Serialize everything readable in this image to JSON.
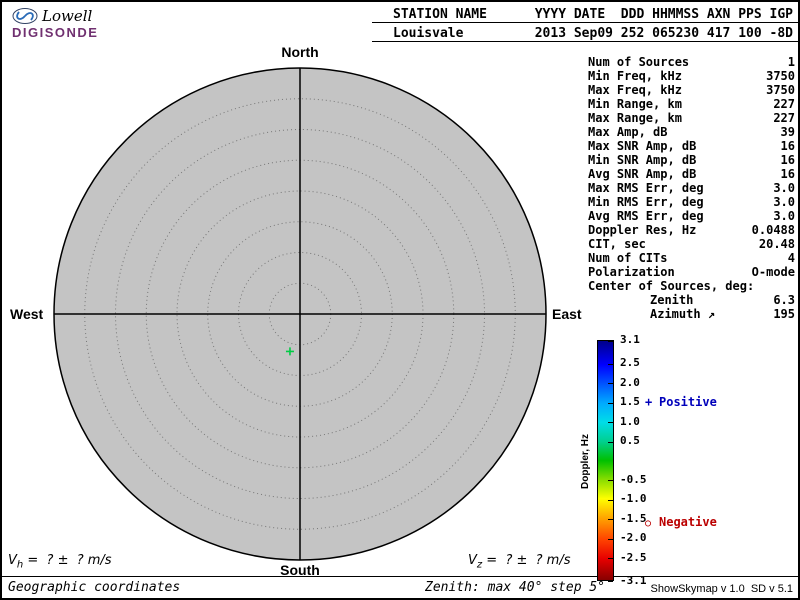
{
  "logo": {
    "brand": "Lowell",
    "product": "DIGISONDE"
  },
  "header": {
    "station_label": "STATION NAME",
    "station_name": "Louisvale",
    "fields_label": "YYYY DATE  DDD HHMMSS AXN PPS IGP",
    "fields_value": "2013 Sep09 252 065230 417 100 -8D"
  },
  "compass": {
    "north": "North",
    "south": "South",
    "east": "East",
    "west": "West"
  },
  "params": [
    {
      "label": "Num of Sources",
      "value": "1"
    },
    {
      "label": "Min Freq, kHz",
      "value": "3750"
    },
    {
      "label": "Max Freq, kHz",
      "value": "3750"
    },
    {
      "label": "Min Range, km",
      "value": "227"
    },
    {
      "label": "Max Range, km",
      "value": "227"
    },
    {
      "label": "Max Amp, dB",
      "value": "39"
    },
    {
      "label": "Max SNR Amp, dB",
      "value": "16"
    },
    {
      "label": "Min SNR Amp, dB",
      "value": "16"
    },
    {
      "label": "Avg SNR Amp, dB",
      "value": "16"
    },
    {
      "label": "Max RMS Err, deg",
      "value": "3.0"
    },
    {
      "label": "Min RMS Err, deg",
      "value": "3.0"
    },
    {
      "label": "Avg RMS Err, deg",
      "value": "3.0"
    },
    {
      "label": "Doppler Res, Hz",
      "value": "0.0488"
    },
    {
      "label": "CIT, sec",
      "value": "20.48"
    },
    {
      "label": "Num of CITs",
      "value": "4"
    },
    {
      "label": "Polarization",
      "value": "O-mode"
    },
    {
      "label": "Center of Sources, deg:",
      "value": ""
    },
    {
      "label": "Zenith",
      "value": "6.3",
      "indent": true
    },
    {
      "label": "Azimuth ↗",
      "value": "195",
      "indent": true
    }
  ],
  "colorbar": {
    "axis_label": "Doppler, Hz",
    "min": -3.1,
    "max": 3.1,
    "ticks": [
      {
        "label": "3.1",
        "value": 3.1
      },
      {
        "label": "2.5",
        "value": 2.5
      },
      {
        "label": "2.0",
        "value": 2.0
      },
      {
        "label": "1.5",
        "value": 1.5
      },
      {
        "label": "1.0",
        "value": 1.0
      },
      {
        "label": "0.5",
        "value": 0.5
      },
      {
        "label": "-0.5",
        "value": -0.5
      },
      {
        "label": "-1.0",
        "value": -1.0
      },
      {
        "label": "-1.5",
        "value": -1.5
      },
      {
        "label": "-2.0",
        "value": -2.0
      },
      {
        "label": "-2.5",
        "value": -2.5
      },
      {
        "label": "-3.1",
        "value": -3.1
      }
    ]
  },
  "legend": {
    "positive": {
      "symbol": "+",
      "label": "Positive"
    },
    "negative": {
      "symbol": "○",
      "label": "Negative"
    }
  },
  "footer": {
    "vh": {
      "prefix": "V",
      "sub": "h",
      "rest": " =  ? ±  ? m/s"
    },
    "vz": {
      "prefix": "V",
      "sub": "z",
      "rest": " =  ? ±  ? m/s"
    },
    "coordinates": "Geographic coordinates",
    "zenith_info": "Zenith: max 40° step 5°",
    "version": "ShowSkymap v 1.0  SD v 5.1"
  },
  "colors": {
    "positive_legend": "#0000bb",
    "negative_legend": "#bb0000",
    "map_fill": "#c4c4c4",
    "logo_text": "#703070",
    "source_marker": "#00cc44"
  },
  "chart_data": {
    "type": "scatter",
    "projection": "polar-skymap",
    "compass_labels": [
      "North",
      "East",
      "South",
      "West"
    ],
    "zenith_max_deg": 40,
    "zenith_step_deg": 5,
    "grid": "dotted-concentric-rings",
    "points": [
      {
        "zenith_deg": 6.3,
        "azimuth_deg": 195,
        "doppler_sign": "positive",
        "marker": "+",
        "color": "#00cc44"
      }
    ],
    "colorbar": {
      "label": "Doppler, Hz",
      "min": -3.1,
      "max": 3.1,
      "units": "Hz"
    }
  }
}
